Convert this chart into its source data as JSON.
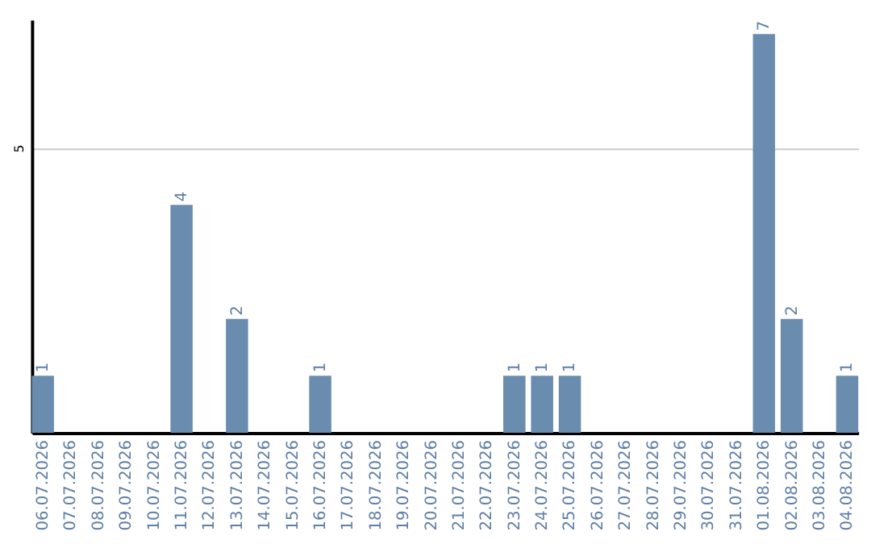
{
  "chart_data": {
    "type": "bar",
    "categories": [
      "06.07.2026",
      "07.07.2026",
      "08.07.2026",
      "09.07.2026",
      "10.07.2026",
      "11.07.2026",
      "12.07.2026",
      "13.07.2026",
      "14.07.2026",
      "15.07.2026",
      "16.07.2026",
      "17.07.2026",
      "18.07.2026",
      "19.07.2026",
      "20.07.2026",
      "21.07.2026",
      "22.07.2026",
      "23.07.2026",
      "24.07.2026",
      "25.07.2026",
      "26.07.2026",
      "27.07.2026",
      "28.07.2026",
      "29.07.2026",
      "30.07.2026",
      "31.07.2026",
      "01.08.2026",
      "02.08.2026",
      "03.08.2026",
      "04.08.2026"
    ],
    "values": [
      1,
      0,
      0,
      0,
      0,
      4,
      0,
      2,
      0,
      0,
      1,
      0,
      0,
      0,
      0,
      0,
      0,
      1,
      1,
      1,
      0,
      0,
      0,
      0,
      0,
      0,
      7,
      2,
      0,
      1
    ],
    "value_labels": [
      "1",
      null,
      null,
      null,
      null,
      "4",
      null,
      "2",
      null,
      null,
      "1",
      null,
      null,
      null,
      null,
      null,
      null,
      "1",
      "1",
      "1",
      null,
      null,
      null,
      null,
      null,
      null,
      "7",
      "2",
      null,
      "1"
    ],
    "color": "#6a8caf",
    "ylim": [
      0,
      7.25
    ],
    "yticks": [
      5
    ],
    "grid": "y"
  }
}
